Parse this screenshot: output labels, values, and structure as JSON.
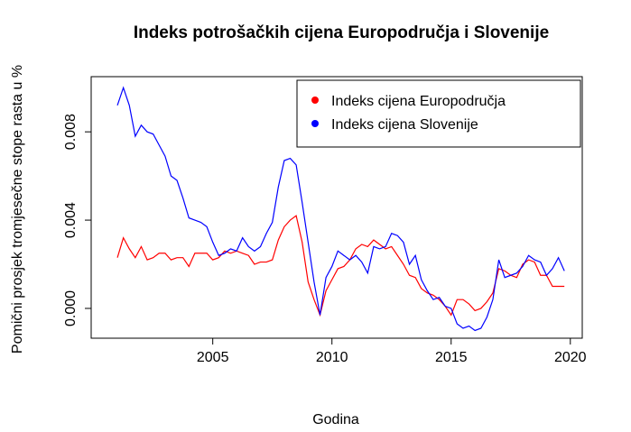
{
  "chart_data": {
    "type": "line",
    "title": "Indeks potrošačkih cijena Europodručja i Slovenije",
    "x_label": "Godina",
    "y_label": "Pomični prosjek tromjesečne stope rasta u %",
    "x": [
      2001,
      2001.25,
      2001.5,
      2001.75,
      2002,
      2002.25,
      2002.5,
      2002.75,
      2003,
      2003.25,
      2003.5,
      2003.75,
      2004,
      2004.25,
      2004.5,
      2004.75,
      2005,
      2005.25,
      2005.5,
      2005.75,
      2006,
      2006.25,
      2006.5,
      2006.75,
      2007,
      2007.25,
      2007.5,
      2007.75,
      2008,
      2008.25,
      2008.5,
      2008.75,
      2009,
      2009.25,
      2009.5,
      2009.75,
      2010,
      2010.25,
      2010.5,
      2010.75,
      2011,
      2011.25,
      2011.5,
      2011.75,
      2012,
      2012.25,
      2012.5,
      2012.75,
      2013,
      2013.25,
      2013.5,
      2013.75,
      2014,
      2014.25,
      2014.5,
      2014.75,
      2015,
      2015.25,
      2015.5,
      2015.75,
      2016,
      2016.25,
      2016.5,
      2016.75,
      2017,
      2017.25,
      2017.5,
      2017.75,
      2018,
      2018.25,
      2018.5,
      2018.75,
      2019,
      2019.25,
      2019.5,
      2019.75
    ],
    "series": [
      {
        "name": "Indeks cijena Europodručja",
        "color": "#ff0000",
        "values": [
          0.0023,
          0.0032,
          0.0027,
          0.0023,
          0.0028,
          0.0022,
          0.0023,
          0.0025,
          0.0025,
          0.0022,
          0.0023,
          0.0023,
          0.0019,
          0.0025,
          0.0025,
          0.0025,
          0.0022,
          0.0023,
          0.0026,
          0.0025,
          0.0026,
          0.0025,
          0.0024,
          0.002,
          0.0021,
          0.0021,
          0.0022,
          0.0031,
          0.0037,
          0.004,
          0.0042,
          0.003,
          0.0012,
          0.0004,
          -0.0003,
          0.0008,
          0.0013,
          0.0018,
          0.0019,
          0.0022,
          0.0027,
          0.0029,
          0.0028,
          0.0031,
          0.0029,
          0.0027,
          0.0028,
          0.0024,
          0.002,
          0.0015,
          0.0014,
          0.0009,
          0.0007,
          0.0006,
          0.0004,
          0.0001,
          -0.0003,
          0.0004,
          0.0004,
          0.0002,
          -0.0001,
          0.0,
          0.0003,
          0.0007,
          0.0018,
          0.0017,
          0.0015,
          0.0014,
          0.002,
          0.0022,
          0.0021,
          0.0015,
          0.0015,
          0.001,
          0.001,
          0.001
        ]
      },
      {
        "name": "Indeks cijena Slovenije",
        "color": "#0000ff",
        "values": [
          0.0092,
          0.01,
          0.0092,
          0.0078,
          0.0083,
          0.008,
          0.0079,
          0.0074,
          0.0069,
          0.006,
          0.0058,
          0.005,
          0.0041,
          0.004,
          0.0039,
          0.0037,
          0.003,
          0.0024,
          0.0025,
          0.0027,
          0.0026,
          0.0032,
          0.0028,
          0.0026,
          0.0028,
          0.0034,
          0.0039,
          0.0055,
          0.0067,
          0.0068,
          0.0065,
          0.0048,
          0.003,
          0.0012,
          -0.0003,
          0.0014,
          0.0019,
          0.0026,
          0.0024,
          0.0022,
          0.0024,
          0.0021,
          0.0016,
          0.0028,
          0.0027,
          0.0028,
          0.0034,
          0.0033,
          0.003,
          0.002,
          0.0024,
          0.0013,
          0.0008,
          0.0004,
          0.0005,
          0.0001,
          0.0,
          -0.0007,
          -0.0009,
          -0.0008,
          -0.001,
          -0.0009,
          -0.0004,
          0.0004,
          0.0022,
          0.0014,
          0.0015,
          0.0016,
          0.0019,
          0.0024,
          0.0022,
          0.0021,
          0.0015,
          0.0018,
          0.0023,
          0.0017
        ]
      }
    ],
    "xlim": [
      1999.9,
      2020.5
    ],
    "xticks": [
      2005,
      2010,
      2015,
      2020
    ],
    "ylim": [
      -0.00135,
      0.0105
    ],
    "yticks": [
      {
        "value": 0,
        "label": "0.000"
      },
      {
        "value": 0.004,
        "label": "0.004"
      },
      {
        "value": 0.008,
        "label": "0.008"
      }
    ],
    "legend": "top-right"
  }
}
